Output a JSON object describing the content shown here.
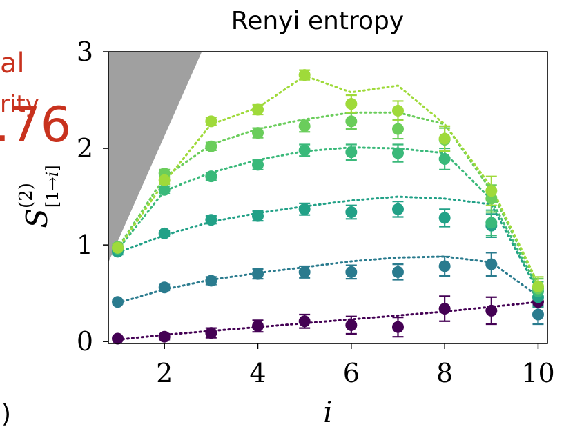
{
  "chart_data": {
    "type": "scatter",
    "title": "Renyi entropy",
    "xlabel": "i",
    "ylabel": "S^{(2)}_{[1→i]}",
    "xlim": [
      0.8,
      10.2
    ],
    "ylim": [
      -0.02,
      3.0
    ],
    "xticks": [
      "2",
      "4",
      "6",
      "8",
      "10"
    ],
    "yticks": [
      "0",
      "1",
      "2",
      "3"
    ],
    "x": [
      1,
      2,
      3,
      4,
      5,
      6,
      7,
      8,
      9,
      10
    ],
    "bound_region": {
      "color": "#a0a0a0",
      "points": [
        [
          0.8,
          0.82
        ],
        [
          0.8,
          3.0
        ],
        [
          2.8,
          3.0
        ]
      ]
    },
    "series": [
      {
        "color": "#440154",
        "values": [
          0.03,
          0.05,
          0.09,
          0.16,
          0.21,
          0.17,
          0.15,
          0.34,
          0.32,
          0.41
        ],
        "errors": [
          0.02,
          0.03,
          0.05,
          0.06,
          0.07,
          0.09,
          0.1,
          0.13,
          0.14,
          0.05
        ],
        "fit": [
          0.02,
          0.07,
          0.11,
          0.15,
          0.19,
          0.23,
          0.27,
          0.31,
          0.36,
          0.41
        ]
      },
      {
        "color": "#2a7b8e",
        "values": [
          0.41,
          0.56,
          0.63,
          0.7,
          0.72,
          0.72,
          0.72,
          0.78,
          0.8,
          0.28
        ],
        "errors": [
          0.02,
          0.03,
          0.04,
          0.05,
          0.06,
          0.07,
          0.08,
          0.1,
          0.12,
          0.1
        ],
        "fit": [
          0.4,
          0.54,
          0.64,
          0.71,
          0.77,
          0.83,
          0.87,
          0.88,
          0.82,
          0.47
        ]
      },
      {
        "color": "#22a187",
        "values": [
          0.93,
          1.12,
          1.26,
          1.3,
          1.37,
          1.34,
          1.37,
          1.28,
          1.2,
          0.46
        ],
        "errors": [
          0.03,
          0.03,
          0.04,
          0.05,
          0.06,
          0.07,
          0.08,
          0.09,
          0.12,
          0.1
        ],
        "fit": [
          0.92,
          1.1,
          1.24,
          1.33,
          1.4,
          1.46,
          1.5,
          1.48,
          1.42,
          0.52
        ]
      },
      {
        "color": "#3ab97a",
        "values": [
          0.96,
          1.57,
          1.71,
          1.83,
          1.98,
          1.96,
          1.95,
          1.89,
          1.23,
          0.52
        ],
        "errors": [
          0.03,
          0.04,
          0.04,
          0.05,
          0.06,
          0.08,
          0.09,
          0.11,
          0.13,
          0.1
        ],
        "fit": [
          0.95,
          1.56,
          1.75,
          1.88,
          1.97,
          2.01,
          2.0,
          1.95,
          1.47,
          0.55
        ]
      },
      {
        "color": "#6acd5b",
        "values": [
          0.98,
          1.74,
          2.02,
          2.16,
          2.23,
          2.28,
          2.2,
          2.09,
          1.48,
          0.55
        ],
        "errors": [
          0.03,
          0.04,
          0.04,
          0.05,
          0.06,
          0.08,
          0.1,
          0.12,
          0.14,
          0.1
        ],
        "fit": [
          0.97,
          1.7,
          2.04,
          2.2,
          2.3,
          2.37,
          2.37,
          2.25,
          1.56,
          0.58
        ]
      },
      {
        "color": "#9fda3a",
        "values": [
          0.97,
          1.67,
          2.28,
          2.4,
          2.76,
          2.46,
          2.39,
          2.1,
          1.56,
          0.57
        ],
        "errors": [
          0.03,
          0.04,
          0.04,
          0.05,
          0.05,
          0.09,
          0.1,
          0.13,
          0.15,
          0.1
        ],
        "fit": [
          0.96,
          1.65,
          2.25,
          2.42,
          2.75,
          2.58,
          2.65,
          2.25,
          1.6,
          0.6
        ]
      }
    ]
  },
  "fragments": {
    "red_top": "al",
    "red_mid": "rity",
    "red_big": ".76",
    "black_bottom": ")"
  }
}
